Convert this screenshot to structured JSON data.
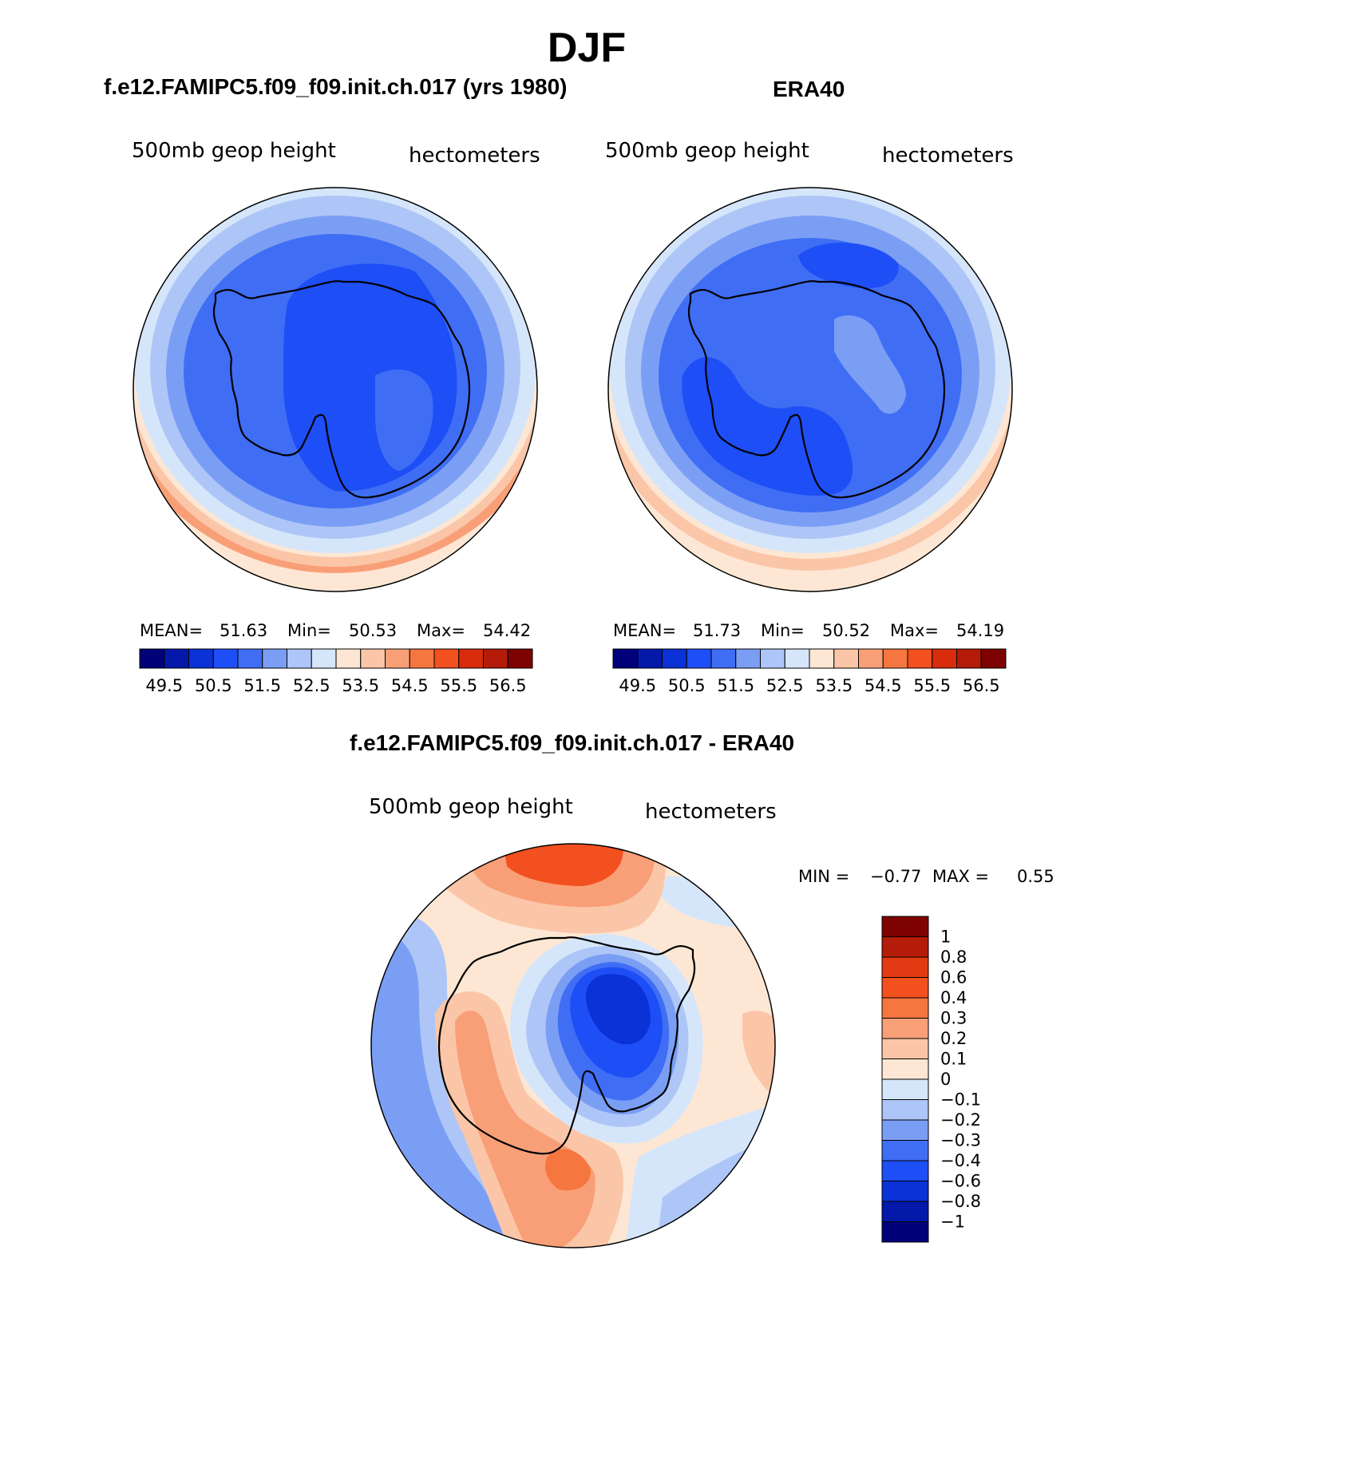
{
  "page": {
    "season": "DJF",
    "subtitles": {
      "model": "f.e12.FAMIPC5.f09_f09.init.ch.017 (yrs 1980)",
      "obs": "ERA40",
      "diff": "f.e12.FAMIPC5.f09_f09.init.ch.017 - ERA40"
    }
  },
  "panels": [
    {
      "id": "model",
      "left_label": "500mb geop height",
      "right_label": "hectometers",
      "stats": {
        "mean_label": "MEAN=",
        "mean": "51.63",
        "min_label": "Min=",
        "min": "50.53",
        "max_label": "Max=",
        "max": "54.42"
      }
    },
    {
      "id": "obs",
      "left_label": "500mb geop height",
      "right_label": "hectometers",
      "stats": {
        "mean_label": "MEAN=",
        "mean": "51.73",
        "min_label": "Min=",
        "min": "50.52",
        "max_label": "Max=",
        "max": "54.19"
      }
    },
    {
      "id": "diff",
      "left_label": "500mb geop height",
      "right_label": "hectometers",
      "minmax": {
        "min_label": "MIN =",
        "min": "−0.77",
        "max_label": "MAX =",
        "max": "0.55"
      }
    }
  ],
  "colorbar_horizontal": {
    "colors": [
      "#01017a",
      "#0418aa",
      "#0a32d6",
      "#1e4ef5",
      "#3f6ef5",
      "#7b9ef5",
      "#aec6f7",
      "#d6e6fa",
      "#fde7d4",
      "#fbc6a8",
      "#f99f78",
      "#f6763f",
      "#f2501f",
      "#d92c0c",
      "#b41b08",
      "#7f0202"
    ],
    "tick_labels": [
      "49.5",
      "50.5",
      "51.5",
      "52.5",
      "53.5",
      "54.5",
      "55.5",
      "56.5"
    ]
  },
  "colorbar_vertical": {
    "colors_top_to_bottom": [
      "#7f0202",
      "#b41b08",
      "#e23a12",
      "#f2501f",
      "#f6763f",
      "#f99f78",
      "#fbc6a8",
      "#fde7d4",
      "#d6e6fa",
      "#aec6f7",
      "#7b9ef5",
      "#3f6ef5",
      "#1e4ef5",
      "#0a32d6",
      "#0418aa",
      "#01017a"
    ],
    "tick_labels": [
      "1",
      "0.8",
      "0.6",
      "0.4",
      "0.3",
      "0.2",
      "0.1",
      "0",
      "−0.1",
      "−0.2",
      "−0.3",
      "−0.4",
      "−0.6",
      "−0.8",
      "−1"
    ]
  }
}
